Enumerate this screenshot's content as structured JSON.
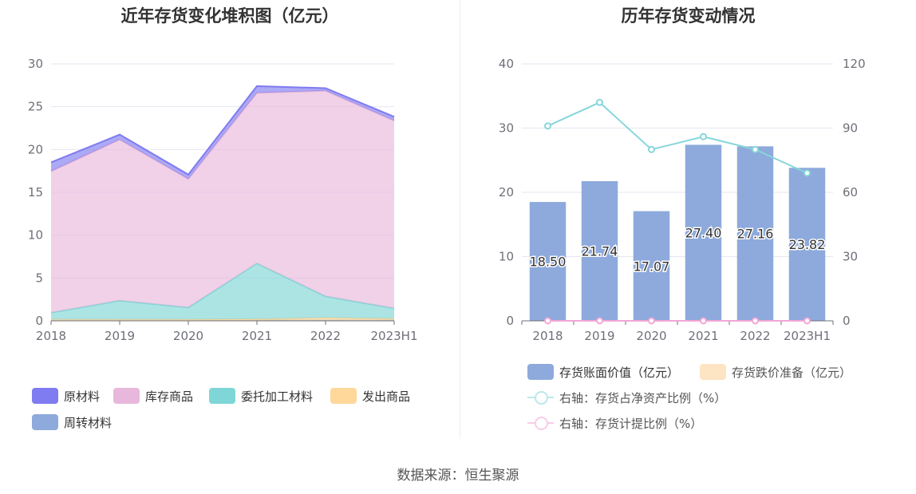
{
  "source_text": "数据来源：恒生聚源",
  "left_chart": {
    "title": "近年存货变化堆积图（亿元）",
    "legend": [
      {
        "label": "原材料",
        "color": "#7f7bf0"
      },
      {
        "label": "库存商品",
        "color": "#e8b8dc"
      },
      {
        "label": "委托加工材料",
        "color": "#7fd6d6"
      },
      {
        "label": "发出商品",
        "color": "#ffd89a"
      },
      {
        "label": "周转材料",
        "color": "#8eaadc"
      }
    ]
  },
  "right_chart": {
    "title": "历年存货变动情况",
    "legend": [
      {
        "label": "存货账面价值（亿元）",
        "color": "#8eaadc"
      },
      {
        "label": "存货跌价准备（亿元）",
        "color": "#fde4c3"
      },
      {
        "label": "右轴：存货占净资产比例（%）",
        "color": "#86d6da"
      },
      {
        "label": "右轴：存货计提比例（%）",
        "color": "#f2a6d8"
      }
    ]
  },
  "chart_data": [
    {
      "type": "area",
      "stacked": true,
      "title": "近年存货变化堆积图（亿元）",
      "categories": [
        "2018",
        "2019",
        "2020",
        "2021",
        "2022",
        "2023H1"
      ],
      "ylim": [
        0,
        30
      ],
      "yticks": [
        0,
        5,
        10,
        15,
        20,
        25,
        30
      ],
      "grid": true,
      "legend_position": "bottom",
      "series": [
        {
          "name": "周转材料",
          "values": [
            0.05,
            0.05,
            0.05,
            0.05,
            0.05,
            0.05
          ],
          "color": "#8eaadc"
        },
        {
          "name": "发出商品",
          "values": [
            0.1,
            0.1,
            0.1,
            0.15,
            0.3,
            0.2
          ],
          "color": "#ffd89a"
        },
        {
          "name": "委托加工材料",
          "values": [
            0.8,
            2.2,
            1.4,
            6.5,
            2.5,
            1.2
          ],
          "color": "#7fd6d6"
        },
        {
          "name": "库存商品",
          "values": [
            16.5,
            18.8,
            15.0,
            19.9,
            24.0,
            21.9
          ],
          "color": "#e8b8dc"
        },
        {
          "name": "原材料",
          "values": [
            1.05,
            0.59,
            0.52,
            0.8,
            0.31,
            0.47
          ],
          "color": "#7f7bf0"
        }
      ]
    },
    {
      "type": "bar",
      "title": "历年存货变动情况",
      "categories": [
        "2018",
        "2019",
        "2020",
        "2021",
        "2022",
        "2023H1"
      ],
      "ylim": [
        0,
        40
      ],
      "yticks": [
        0,
        10,
        20,
        30,
        40
      ],
      "y2lim": [
        0,
        120
      ],
      "y2ticks": [
        0,
        30,
        60,
        90,
        120
      ],
      "grid": true,
      "legend_position": "bottom",
      "series": [
        {
          "name": "存货账面价值（亿元）",
          "type": "bar",
          "axis": "left",
          "values": [
            18.5,
            21.74,
            17.07,
            27.4,
            27.16,
            23.82
          ],
          "labels": [
            "18.50",
            "21.74",
            "17.07",
            "27.40",
            "27.16",
            "23.82"
          ],
          "color": "#8eaadc"
        },
        {
          "name": "存货跌价准备（亿元）",
          "type": "bar",
          "axis": "left",
          "values": [
            0,
            0,
            0,
            0,
            0,
            0
          ],
          "color": "#fde4c3"
        },
        {
          "name": "右轴：存货占净资产比例（%）",
          "type": "line",
          "axis": "right",
          "values": [
            91,
            102,
            80,
            86,
            80,
            69
          ],
          "color": "#86d6da"
        },
        {
          "name": "右轴：存货计提比例（%）",
          "type": "line",
          "axis": "right",
          "values": [
            0,
            0,
            0,
            0,
            0,
            0
          ],
          "color": "#f2a6d8"
        }
      ]
    }
  ]
}
